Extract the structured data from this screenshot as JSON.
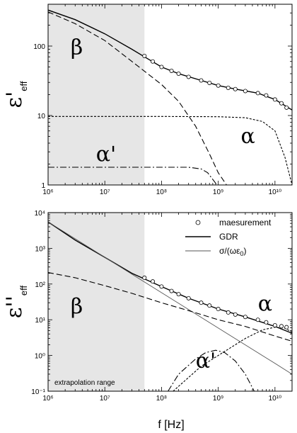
{
  "chart_data": [
    {
      "type": "line",
      "panel": "top",
      "ylabel_main": "ε'",
      "ylabel_sub": "eff",
      "xscale": "log",
      "yscale": "log",
      "xlim": [
        1000000,
        20000000000
      ],
      "ylim": [
        1,
        400
      ],
      "x_ticks": [
        "10⁶",
        "10⁷",
        "10⁸",
        "10⁹",
        "10¹⁰"
      ],
      "y_ticks": [
        {
          "value": 1,
          "label": "1"
        },
        {
          "value": 10,
          "label": "10"
        },
        {
          "value": 100,
          "label": "100"
        }
      ],
      "shaded_region_x": [
        1000000,
        50000000
      ],
      "annotations": [
        {
          "text": "β",
          "x": 2500000,
          "y": 75
        },
        {
          "text": "α'",
          "x": 7000000,
          "y": 2.2
        },
        {
          "text": "α",
          "x": 2500000000,
          "y": 4
        }
      ],
      "series": [
        {
          "style": "solid",
          "color": "#000000",
          "x": [
            1000000.0,
            3000000.0,
            10000000.0,
            30000000.0,
            50000000.0,
            100000000.0,
            200000000.0,
            500000000.0,
            1000000000.0,
            2000000000.0,
            5000000000.0,
            10000000000.0,
            20000000000.0
          ],
          "y": [
            330,
            240,
            150,
            90,
            70,
            50,
            40,
            32,
            27,
            24,
            21,
            17,
            12
          ]
        },
        {
          "style": "dashed",
          "color": "#000000",
          "x": [
            1000000.0,
            3000000.0,
            10000000.0,
            30000000.0,
            100000000.0,
            200000000.0,
            400000000.0,
            700000000.0,
            1000000000.0,
            1400000000.0
          ],
          "y": [
            310,
            210,
            120,
            60,
            28,
            16,
            7,
            2.8,
            1.5,
            1
          ]
        },
        {
          "style": "dotted",
          "color": "#000000",
          "x": [
            1000000.0,
            100000000.0,
            1000000000.0,
            3000000000.0,
            6000000000.0,
            10000000000.0,
            15000000000.0,
            20000000000.0
          ],
          "y": [
            9.7,
            9.7,
            9.6,
            9.3,
            8.2,
            6,
            2.5,
            1
          ]
        },
        {
          "style": "dashdot",
          "color": "#000000",
          "x": [
            1000000.0,
            100000000.0,
            300000000.0,
            500000000.0,
            650000000.0,
            800000000.0,
            950000000.0
          ],
          "y": [
            1.8,
            1.8,
            1.8,
            1.7,
            1.5,
            1.2,
            1
          ]
        },
        {
          "style": "markers",
          "color": "#000000",
          "marker": "open-circle",
          "x": [
            50000000.0,
            70000000.0,
            100000000.0,
            150000000.0,
            200000000.0,
            300000000.0,
            500000000.0,
            700000000.0,
            1000000000.0,
            1500000000.0,
            2000000000.0,
            3000000000.0,
            5000000000.0,
            7000000000.0,
            10000000000.0,
            13000000000.0,
            16000000000.0
          ],
          "y": [
            72,
            60,
            50,
            44,
            40,
            36,
            32,
            29.5,
            27,
            25,
            24,
            22.5,
            21,
            19.5,
            17,
            15,
            13
          ]
        }
      ]
    },
    {
      "type": "line",
      "panel": "bottom",
      "ylabel_main": "ε''",
      "ylabel_sub": "eff",
      "xlabel": "f [Hz]",
      "xscale": "log",
      "yscale": "log",
      "xlim": [
        1000000,
        20000000000
      ],
      "ylim": [
        0.1,
        10000
      ],
      "x_ticks": [
        "10⁶",
        "10⁷",
        "10⁸",
        "10⁹",
        "10¹⁰"
      ],
      "y_ticks": [
        {
          "value": 0.1,
          "label": "10⁻¹"
        },
        {
          "value": 1,
          "label": "10⁰"
        },
        {
          "value": 10,
          "label": "10¹"
        },
        {
          "value": 100,
          "label": "10²"
        },
        {
          "value": 1000,
          "label": "10³"
        },
        {
          "value": 10000,
          "label": "10⁴"
        }
      ],
      "shaded_region_x": [
        1000000,
        50000000
      ],
      "shaded_label": "extrapolation range",
      "legend": {
        "placement": "top-right",
        "entries": [
          {
            "label": "maesurement",
            "style": "markers"
          },
          {
            "label": "GDR",
            "style": "solid"
          },
          {
            "label": "σ/(ωε",
            "sub": "0",
            "tail": ")",
            "style": "thin"
          }
        ]
      },
      "annotations": [
        {
          "text": "β",
          "x": 2500000,
          "y": 15
        },
        {
          "text": "α'",
          "x": 400000000,
          "y": 0.45
        },
        {
          "text": "α",
          "x": 5000000000,
          "y": 18
        }
      ],
      "series": [
        {
          "style": "solid",
          "color": "#000000",
          "x": [
            1000000.0,
            3000000.0,
            10000000.0,
            30000000.0,
            100000000.0,
            300000000.0,
            1000000000.0,
            3000000000.0,
            10000000000.0,
            20000000000.0
          ],
          "y": [
            5500,
            1700,
            560,
            200,
            85,
            40,
            20,
            12,
            6.5,
            4.2
          ]
        },
        {
          "style": "thin",
          "color": "#444444",
          "x": [
            1000000.0,
            10000000000.0,
            20000000000.0
          ],
          "y": [
            5500,
            0.6,
            0.3
          ]
        },
        {
          "style": "dashed",
          "color": "#000000",
          "x": [
            1000000.0,
            3000000.0,
            10000000.0,
            30000000.0,
            100000000.0,
            300000000.0,
            1000000000.0,
            3000000000.0,
            10000000000.0,
            20000000000.0
          ],
          "y": [
            210,
            150,
            90,
            55,
            30,
            18,
            10,
            6.5,
            3.5,
            2.5
          ]
        },
        {
          "style": "dotted",
          "color": "#000000",
          "x": [
            160000000.0,
            500000000.0,
            1000000000.0,
            3000000000.0,
            6000000000.0,
            10000000000.0,
            15000000000.0,
            20000000000.0
          ],
          "y": [
            0.1,
            0.5,
            1,
            3,
            5.2,
            6.2,
            5.8,
            4.5
          ]
        },
        {
          "style": "dashdot",
          "color": "#000000",
          "x": [
            130000000.0,
            200000000.0,
            400000000.0,
            600000000.0,
            900000000.0,
            1300000000.0,
            2000000000.0,
            3000000000.0,
            4300000000.0
          ],
          "y": [
            0.1,
            0.3,
            0.8,
            1.2,
            1.4,
            1.2,
            0.7,
            0.3,
            0.1
          ]
        },
        {
          "style": "markers",
          "color": "#000000",
          "marker": "open-circle",
          "x": [
            50000000.0,
            70000000.0,
            100000000.0,
            150000000.0,
            200000000.0,
            300000000.0,
            500000000.0,
            700000000.0,
            1000000000.0,
            1500000000.0,
            2000000000.0,
            3000000000.0,
            5000000000.0,
            7000000000.0,
            10000000000.0,
            13000000000.0,
            16000000000.0
          ],
          "y": [
            150,
            118,
            85,
            64,
            52,
            40,
            30,
            25,
            20,
            16,
            14,
            12,
            10,
            8.5,
            7,
            6.6,
            6.2
          ]
        }
      ]
    }
  ]
}
